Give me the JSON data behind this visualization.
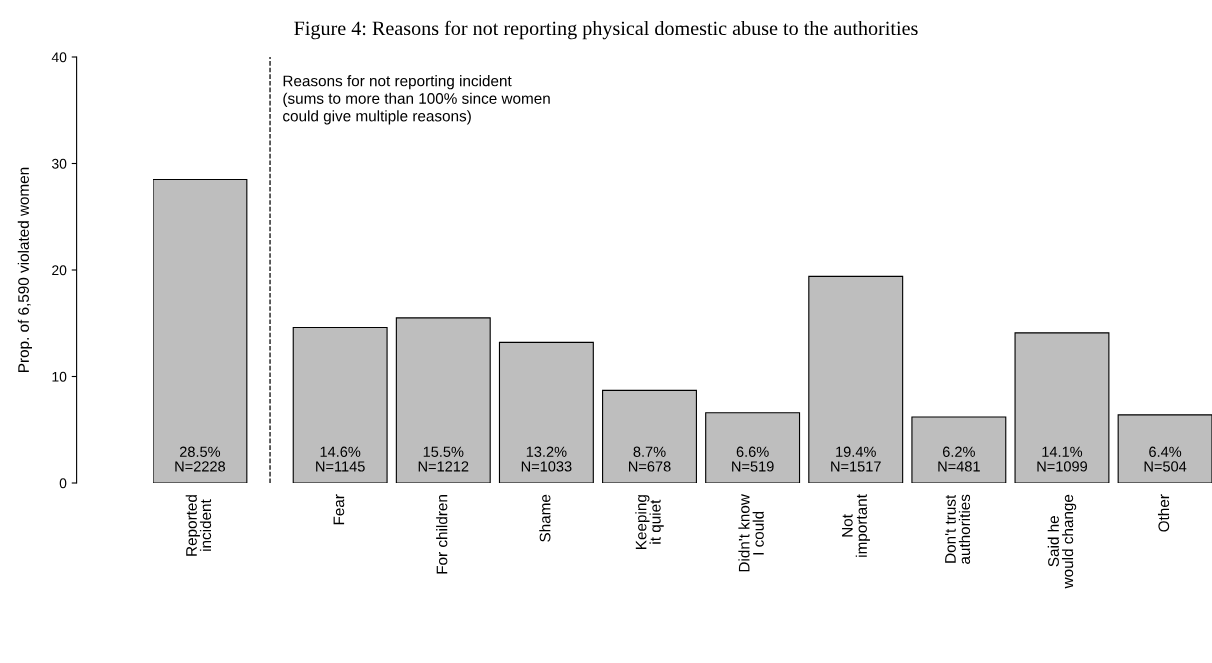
{
  "chart_data": {
    "type": "bar",
    "title": "Figure 4: Reasons for not reporting physical domestic abuse to the authorities",
    "ylabel": "Prop. of 6,590 violated women",
    "categories": [
      "Reported\nincident",
      "Fear",
      "For children",
      "Shame",
      "Keeping\nit quiet",
      "Didn't know\nI could",
      "Not\nimportant",
      "Don't trust\nauthorities",
      "Said he\nwould change",
      "Other"
    ],
    "values": [
      28.5,
      14.6,
      15.5,
      13.2,
      8.7,
      6.6,
      19.4,
      6.2,
      14.1,
      6.4
    ],
    "value_labels": [
      "28.5%\nN=2228",
      "14.6%\nN=1145",
      "15.5%\nN=1212",
      "13.2%\nN=1033",
      "8.7%\nN=678",
      "6.6%\nN=519",
      "19.4%\nN=1517",
      "6.2%\nN=481",
      "14.1%\nN=1099",
      "6.4%\nN=504"
    ],
    "color": "#bebebe",
    "ylim": [
      0,
      40
    ],
    "yticks": [
      0,
      10,
      20,
      30,
      40
    ],
    "annotations": [
      "Reasons for not reporting incident\n(sums to more than 100% since women\ncould give multiple reasons)"
    ],
    "grid": false,
    "legend": false
  }
}
